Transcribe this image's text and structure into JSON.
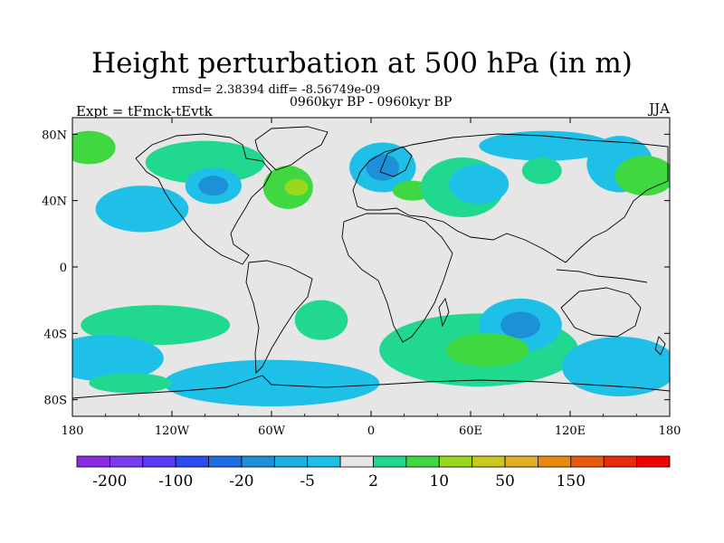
{
  "chart_data": {
    "type": "heatmap",
    "title": "Height perturbation at 500 hPa (in m)",
    "stats_text": "rmsd= 2.38394 diff= -8.56749e-09",
    "subtitle": "0960kyr BP - 0960kyr BP",
    "left_label": "Expt = tFmck-tEvtk",
    "right_label": "JJA",
    "x_range": [
      -180,
      180
    ],
    "y_range": [
      -90,
      90
    ],
    "x_ticks": [
      {
        "value": -180,
        "label": "180"
      },
      {
        "value": -120,
        "label": "120W"
      },
      {
        "value": -60,
        "label": "60W"
      },
      {
        "value": 0,
        "label": "0"
      },
      {
        "value": 60,
        "label": "60E"
      },
      {
        "value": 120,
        "label": "120E"
      },
      {
        "value": 180,
        "label": "180"
      }
    ],
    "y_ticks": [
      {
        "value": 80,
        "label": "80N"
      },
      {
        "value": 40,
        "label": "40N"
      },
      {
        "value": 0,
        "label": "0"
      },
      {
        "value": -40,
        "label": "40S"
      },
      {
        "value": -80,
        "label": "80S"
      }
    ],
    "colorbar": {
      "colors": [
        "#8a2be2",
        "#7a3cf0",
        "#5a3cf5",
        "#2a4cf0",
        "#1e6ee8",
        "#1e90d8",
        "#1eb0e0",
        "#1ec0e8",
        "#e6e6e6",
        "#20d890",
        "#40d840",
        "#9ad820",
        "#c8c820",
        "#e0b020",
        "#e88a10",
        "#e85a10",
        "#e82a10",
        "#f00000"
      ],
      "labels": [
        "-200",
        "-100",
        "-20",
        "-5",
        "2",
        "10",
        "50",
        "150"
      ]
    },
    "anomaly_regions": [
      {
        "lon": -170,
        "lat": 72,
        "rlon": 16,
        "rlat": 10,
        "value": 10
      },
      {
        "lon": -100,
        "lat": 63,
        "rlon": 36,
        "rlat": 13,
        "value": 5
      },
      {
        "lon": -95,
        "lat": 49,
        "rlon": 17,
        "rlat": 11,
        "value": -5
      },
      {
        "lon": -50,
        "lat": 48,
        "rlon": 15,
        "rlat": 13,
        "value": 10
      },
      {
        "lon": -138,
        "lat": 35,
        "rlon": 28,
        "rlat": 14,
        "value": -5
      },
      {
        "lon": 7,
        "lat": 60,
        "rlon": 20,
        "rlat": 15,
        "value": -5
      },
      {
        "lon": 25,
        "lat": 46,
        "rlon": 12,
        "rlat": 6,
        "value": 10
      },
      {
        "lon": 55,
        "lat": 48,
        "rlon": 25,
        "rlat": 18,
        "value": 5
      },
      {
        "lon": 65,
        "lat": 50,
        "rlon": 18,
        "rlat": 12,
        "value": -5
      },
      {
        "lon": 105,
        "lat": 73,
        "rlon": 40,
        "rlat": 9,
        "value": -5
      },
      {
        "lon": 103,
        "lat": 58,
        "rlon": 12,
        "rlat": 8,
        "value": 5
      },
      {
        "lon": 150,
        "lat": 62,
        "rlon": 20,
        "rlat": 17,
        "value": -5
      },
      {
        "lon": 165,
        "lat": 55,
        "rlon": 18,
        "rlat": 12,
        "value": 10
      },
      {
        "lon": -130,
        "lat": -35,
        "rlon": 45,
        "rlat": 12,
        "value": 5
      },
      {
        "lon": -160,
        "lat": -55,
        "rlon": 35,
        "rlat": 14,
        "value": -5
      },
      {
        "lon": -30,
        "lat": -32,
        "rlon": 16,
        "rlat": 12,
        "value": 5
      },
      {
        "lon": 65,
        "lat": -50,
        "rlon": 60,
        "rlat": 22,
        "value": 5
      },
      {
        "lon": 90,
        "lat": -35,
        "rlon": 25,
        "rlat": 16,
        "value": -5
      },
      {
        "lon": -60,
        "lat": -70,
        "rlon": 65,
        "rlat": 14,
        "value": -5
      },
      {
        "lon": 150,
        "lat": -60,
        "rlon": 35,
        "rlat": 18,
        "value": -5
      },
      {
        "lon": -145,
        "lat": -70,
        "rlon": 25,
        "rlat": 6,
        "value": 5
      }
    ]
  }
}
